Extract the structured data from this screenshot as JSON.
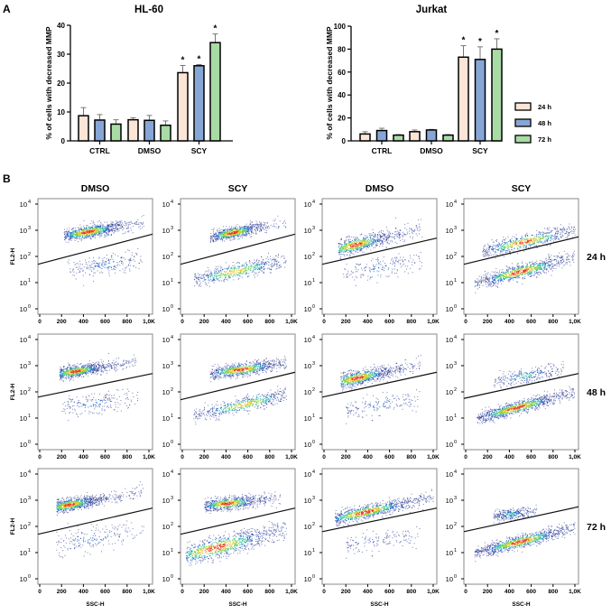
{
  "panel_labels": {
    "a": "A",
    "b": "B"
  },
  "legend": {
    "items": [
      {
        "label": "24 h",
        "color": "#fbe5d6"
      },
      {
        "label": "48 h",
        "color": "#86a6d6"
      },
      {
        "label": "72 h",
        "color": "#a9dca5"
      }
    ]
  },
  "chart_data": [
    {
      "type": "bar",
      "title": "HL-60",
      "xlabel": "",
      "ylabel": "% of cells with decreased MMP",
      "ylim": [
        0,
        40
      ],
      "yticks": [
        0,
        10,
        20,
        30,
        40
      ],
      "categories": [
        "CTRL",
        "DMSO",
        "SCY"
      ],
      "series": [
        {
          "name": "24 h",
          "values": [
            8.7,
            7.3,
            23.6
          ],
          "errors": [
            2.8,
            0.7,
            2.5
          ],
          "significant": [
            false,
            false,
            true
          ]
        },
        {
          "name": "48 h",
          "values": [
            7.2,
            7.1,
            26.0
          ],
          "errors": [
            1.9,
            1.7,
            0.4
          ],
          "significant": [
            false,
            false,
            true
          ]
        },
        {
          "name": "72 h",
          "values": [
            5.8,
            5.4,
            34.0
          ],
          "errors": [
            1.5,
            1.5,
            3.0
          ],
          "significant": [
            false,
            false,
            true
          ]
        }
      ],
      "significance_marker": "*"
    },
    {
      "type": "bar",
      "title": "Jurkat",
      "xlabel": "",
      "ylabel": "% of cells with decreased MMP",
      "ylim": [
        0,
        100
      ],
      "yticks": [
        0,
        20,
        40,
        60,
        80,
        100
      ],
      "categories": [
        "CTRL",
        "DMSO",
        "SCY"
      ],
      "series": [
        {
          "name": "24 h",
          "values": [
            6.0,
            8.0,
            73.0
          ],
          "errors": [
            2.0,
            1.5,
            10.0
          ],
          "significant": [
            false,
            false,
            true
          ]
        },
        {
          "name": "48 h",
          "values": [
            9.0,
            9.5,
            71.0
          ],
          "errors": [
            2.0,
            0.5,
            11.0
          ],
          "significant": [
            false,
            false,
            true
          ]
        },
        {
          "name": "72 h",
          "values": [
            5.0,
            5.0,
            80.0
          ],
          "errors": [
            0.5,
            0.5,
            9.0
          ],
          "significant": [
            false,
            false,
            true
          ]
        }
      ],
      "significance_marker": "*"
    },
    {
      "type": "scatter",
      "subtype": "flow-cytometry-density",
      "xlabel": "SSC-H",
      "ylabel": "FL2-H",
      "xlim": [
        0,
        1000
      ],
      "xticks": [
        0,
        200,
        400,
        600,
        800,
        1000
      ],
      "xtick_labels": [
        "0",
        "200",
        "400",
        "600",
        "800",
        "1,0K"
      ],
      "ylim_log10": [
        0,
        4
      ],
      "ytick_exponents": [
        0,
        1,
        2,
        3,
        4
      ],
      "ytick_base": "10",
      "column_titles": [
        "DMSO",
        "SCY",
        "DMSO",
        "SCY"
      ],
      "row_titles": [
        "24 h",
        "48 h",
        "72 h"
      ],
      "panels": [
        [
          {
            "gate_log10": [
              1.7,
              2.85
            ],
            "populations": [
              {
                "ssc": [
                  220,
                  950
                ],
                "log10": [
                  2.8,
                  3.3
                ],
                "center": 0.3,
                "spread": 0.25,
                "thickness": 0.12,
                "n": 900
              },
              {
                "ssc": [
                  250,
                  950
                ],
                "log10": [
                  1.5,
                  1.9
                ],
                "center": 0.5,
                "spread": 0.35,
                "thickness": 0.18,
                "n": 220
              }
            ]
          },
          {
            "gate_log10": [
              1.7,
              2.85
            ],
            "populations": [
              {
                "ssc": [
                  250,
                  950
                ],
                "log10": [
                  2.75,
                  3.3
                ],
                "center": 0.3,
                "spread": 0.22,
                "thickness": 0.11,
                "n": 800
              },
              {
                "ssc": [
                  100,
                  950
                ],
                "log10": [
                  1.1,
                  1.85
                ],
                "center": 0.45,
                "spread": 0.35,
                "thickness": 0.15,
                "n": 550
              }
            ]
          },
          {
            "gate_log10": [
              1.7,
              2.7
            ],
            "populations": [
              {
                "ssc": [
                  130,
                  900
                ],
                "log10": [
                  2.3,
                  3.1
                ],
                "center": 0.2,
                "spread": 0.25,
                "thickness": 0.15,
                "n": 750
              },
              {
                "ssc": [
                  150,
                  900
                ],
                "log10": [
                  1.3,
                  1.9
                ],
                "center": 0.5,
                "spread": 0.35,
                "thickness": 0.2,
                "n": 180
              }
            ]
          },
          {
            "gate_log10": [
              1.7,
              2.75
            ],
            "populations": [
              {
                "ssc": [
                  150,
                  1000
                ],
                "log10": [
                  2.2,
                  3.0
                ],
                "center": 0.45,
                "spread": 0.35,
                "thickness": 0.14,
                "n": 650
              },
              {
                "ssc": [
                  80,
                  1000
                ],
                "log10": [
                  1.0,
                  1.95
                ],
                "center": 0.45,
                "spread": 0.28,
                "thickness": 0.14,
                "n": 900
              }
            ]
          }
        ],
        [
          {
            "gate_log10": [
              1.8,
              2.7
            ],
            "populations": [
              {
                "ssc": [
                  180,
                  900
                ],
                "log10": [
                  2.7,
                  3.2
                ],
                "center": 0.2,
                "spread": 0.22,
                "thickness": 0.11,
                "n": 850
              },
              {
                "ssc": [
                  200,
                  900
                ],
                "log10": [
                  1.4,
                  1.8
                ],
                "center": 0.4,
                "spread": 0.35,
                "thickness": 0.2,
                "n": 200
              }
            ]
          },
          {
            "gate_log10": [
              1.7,
              2.75
            ],
            "populations": [
              {
                "ssc": [
                  250,
                  950
                ],
                "log10": [
                  2.7,
                  3.1
                ],
                "center": 0.4,
                "spread": 0.3,
                "thickness": 0.12,
                "n": 800
              },
              {
                "ssc": [
                  100,
                  950
                ],
                "log10": [
                  1.1,
                  1.9
                ],
                "center": 0.55,
                "spread": 0.35,
                "thickness": 0.14,
                "n": 550
              }
            ]
          },
          {
            "gate_log10": [
              1.8,
              2.75
            ],
            "populations": [
              {
                "ssc": [
                  150,
                  900
                ],
                "log10": [
                  2.4,
                  3.1
                ],
                "center": 0.2,
                "spread": 0.25,
                "thickness": 0.14,
                "n": 800
              },
              {
                "ssc": [
                  200,
                  900
                ],
                "log10": [
                  1.3,
                  1.8
                ],
                "center": 0.4,
                "spread": 0.35,
                "thickness": 0.2,
                "n": 170
              }
            ]
          },
          {
            "gate_log10": [
              1.75,
              2.7
            ],
            "populations": [
              {
                "ssc": [
                  250,
                  900
                ],
                "log10": [
                  2.4,
                  2.9
                ],
                "center": 0.45,
                "spread": 0.35,
                "thickness": 0.15,
                "n": 280
              },
              {
                "ssc": [
                  100,
                  1000
                ],
                "log10": [
                  1.0,
                  2.0
                ],
                "center": 0.4,
                "spread": 0.28,
                "thickness": 0.12,
                "n": 1000
              }
            ]
          }
        ],
        [
          {
            "gate_log10": [
              1.7,
              2.7
            ],
            "populations": [
              {
                "ssc": [
                  150,
                  950
                ],
                "log10": [
                  2.75,
                  3.35
                ],
                "center": 0.15,
                "spread": 0.2,
                "thickness": 0.12,
                "n": 850
              },
              {
                "ssc": [
                  150,
                  950
                ],
                "log10": [
                  1.3,
                  1.9
                ],
                "center": 0.4,
                "spread": 0.35,
                "thickness": 0.25,
                "n": 200
              }
            ]
          },
          {
            "gate_log10": [
              1.7,
              2.7
            ],
            "populations": [
              {
                "ssc": [
                  200,
                  900
                ],
                "log10": [
                  2.8,
                  3.1
                ],
                "center": 0.3,
                "spread": 0.25,
                "thickness": 0.12,
                "n": 750
              },
              {
                "ssc": [
                  30,
                  950
                ],
                "log10": [
                  0.9,
                  1.9
                ],
                "center": 0.3,
                "spread": 0.35,
                "thickness": 0.2,
                "n": 900
              }
            ]
          },
          {
            "gate_log10": [
              1.8,
              2.7
            ],
            "populations": [
              {
                "ssc": [
                  100,
                  1000
                ],
                "log10": [
                  2.3,
                  3.15
                ],
                "center": 0.3,
                "spread": 0.3,
                "thickness": 0.13,
                "n": 900
              },
              {
                "ssc": [
                  200,
                  900
                ],
                "log10": [
                  1.3,
                  1.7
                ],
                "center": 0.4,
                "spread": 0.35,
                "thickness": 0.2,
                "n": 150
              }
            ]
          },
          {
            "gate_log10": [
              1.8,
              2.75
            ],
            "populations": [
              {
                "ssc": [
                  250,
                  650
                ],
                "log10": [
                  2.4,
                  2.6
                ],
                "center": 0.4,
                "spread": 0.3,
                "thickness": 0.1,
                "n": 300
              },
              {
                "ssc": [
                  80,
                  1000
                ],
                "log10": [
                  1.0,
                  1.95
                ],
                "center": 0.45,
                "spread": 0.28,
                "thickness": 0.12,
                "n": 1000
              }
            ]
          }
        ]
      ]
    }
  ]
}
